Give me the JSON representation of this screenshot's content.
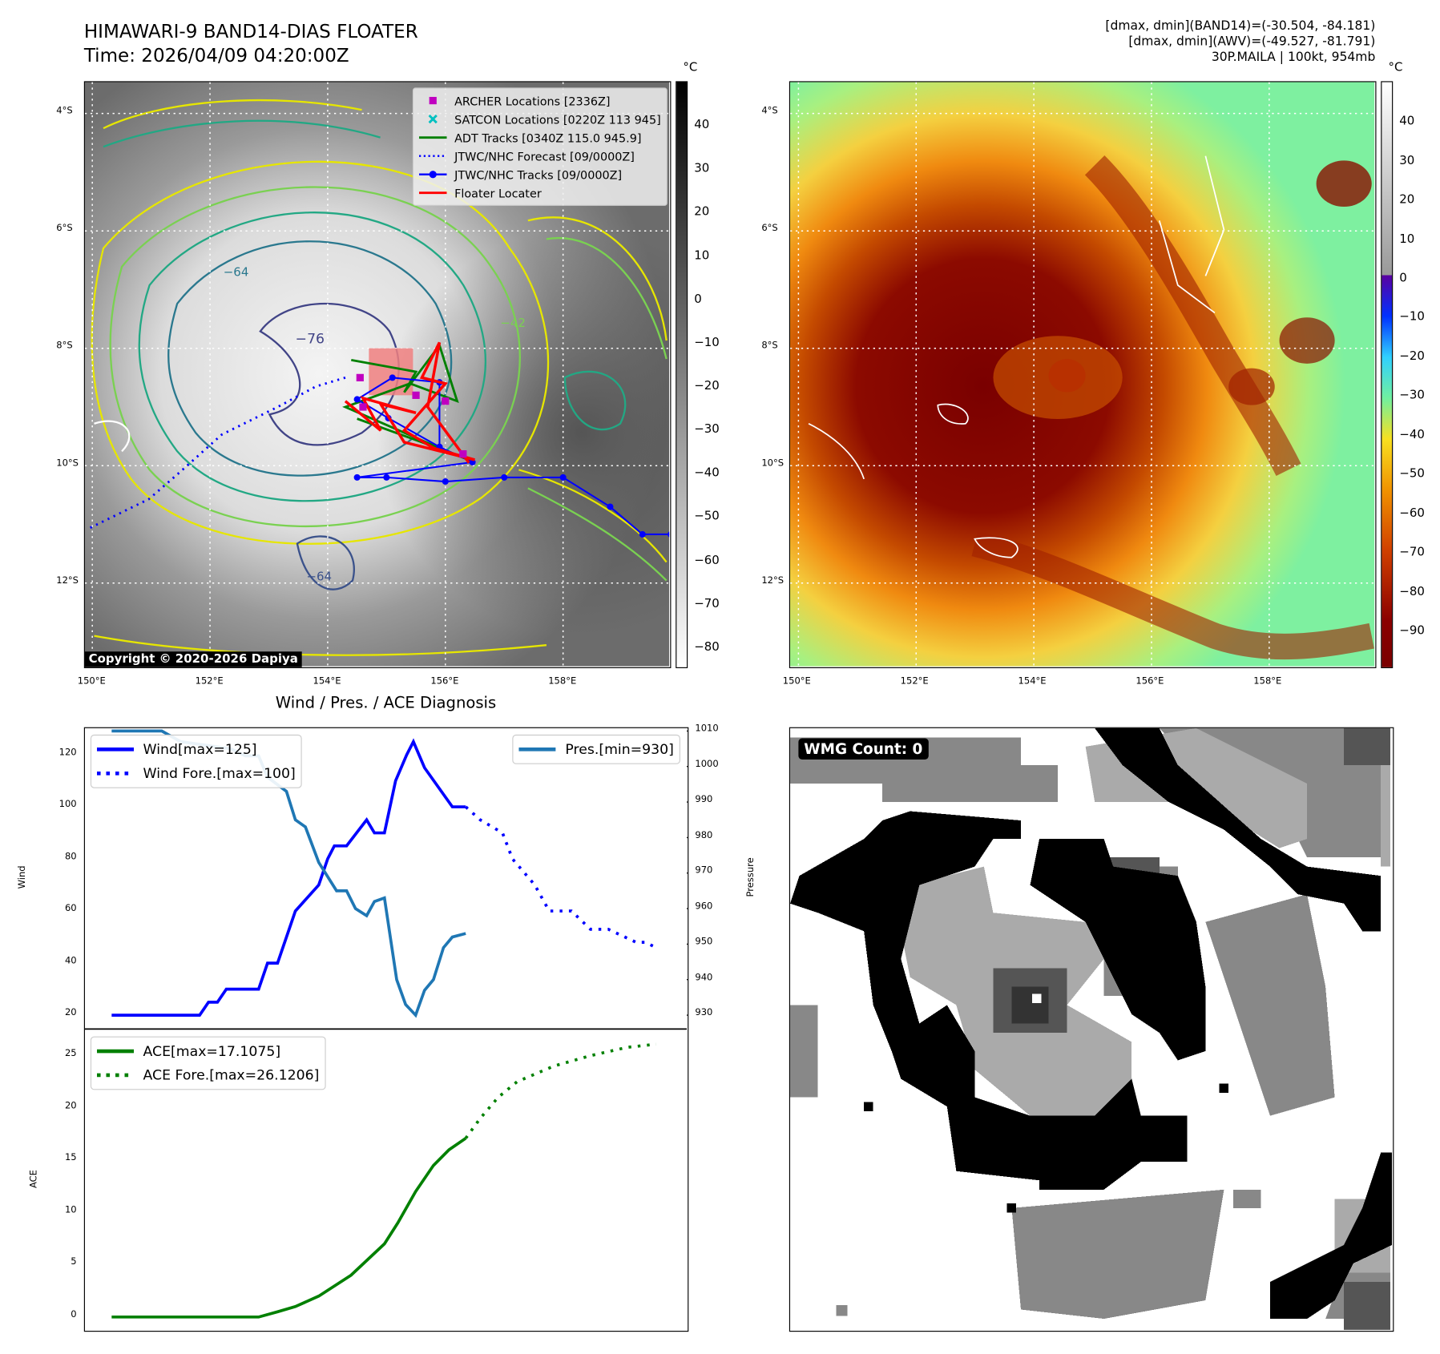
{
  "header": {
    "title": "HIMAWARI-9 BAND14-DIAS FLOATER",
    "time": "Time: 2026/04/09 04:20:00Z",
    "info_line1": "[dmax, dmin](BAND14)=(-30.504, -84.181)",
    "info_line2": "[dmax, dmin](AWV)=(-49.527, -81.791)",
    "info_line3": "30P.MAILA | 100kt, 954mb"
  },
  "maps": {
    "lat_labels": [
      "4°S",
      "6°S",
      "8°S",
      "10°S",
      "12°S"
    ],
    "lon_labels": [
      "150°E",
      "152°E",
      "154°E",
      "156°E",
      "158°E"
    ],
    "unit": "°C",
    "copyright": "Copyright © 2020-2026 Dapiya",
    "contour_labels": [
      "−76",
      "−42",
      "−64",
      "−64"
    ],
    "left_colorbar": {
      "ticks": [
        "40",
        "30",
        "20",
        "10",
        "0",
        "−10",
        "−20",
        "−30",
        "−40",
        "−50",
        "−60",
        "−70",
        "−80"
      ],
      "range": [
        -84.7,
        50.2
      ]
    },
    "right_colorbar": {
      "ticks": [
        "40",
        "30",
        "20",
        "10",
        "0",
        "−10",
        "−20",
        "−30",
        "−40",
        "−50",
        "−60",
        "−70",
        "−80",
        "−90"
      ],
      "range": [
        -99.4,
        50.4
      ]
    },
    "legend": [
      {
        "label": "ARCHER Locations [2336Z]",
        "color": "#c000c0",
        "icon": "square-marker-icon"
      },
      {
        "label": "SATCON Locations [0220Z 113 945]",
        "color": "#00c0c0",
        "icon": "x-marker-icon"
      },
      {
        "label": "ADT Tracks [0340Z 115.0 945.9]",
        "color": "#008000",
        "icon": "solid-line-icon"
      },
      {
        "label": "JTWC/NHC Forecast [09/0000Z]",
        "color": "#0000ff",
        "icon": "dotted-line-icon"
      },
      {
        "label": "JTWC/NHC Tracks [09/0000Z]",
        "color": "#0000ff",
        "icon": "line-dot-icon"
      },
      {
        "label": "Floater Locater",
        "color": "#ff0000",
        "icon": "solid-line-icon"
      }
    ],
    "tracks": {
      "jtwc": [
        [
          159.83,
          11.17
        ],
        [
          159.35,
          11.17
        ],
        [
          158.8,
          10.7
        ],
        [
          158.0,
          10.2
        ],
        [
          157.0,
          10.2
        ],
        [
          156.0,
          10.27
        ],
        [
          155.0,
          10.2
        ],
        [
          154.5,
          10.2
        ],
        [
          156.46,
          9.94
        ],
        [
          155.9,
          9.68
        ],
        [
          155.03,
          9.19
        ],
        [
          154.5,
          8.87
        ],
        [
          155.1,
          8.5
        ],
        [
          155.9,
          8.58
        ],
        [
          155.9,
          9.68
        ]
      ],
      "forecast": [
        [
          154.3,
          8.5
        ],
        [
          153.8,
          8.65
        ],
        [
          153.15,
          9.0
        ],
        [
          152.2,
          9.47
        ],
        [
          151.5,
          10.1
        ],
        [
          150.96,
          10.57
        ],
        [
          149.94,
          11.07
        ]
      ],
      "floater": [
        [
          154.3,
          8.9
        ],
        [
          154.9,
          9.4
        ],
        [
          154.6,
          8.85
        ],
        [
          155.5,
          9.1
        ],
        [
          154.9,
          8.95
        ],
        [
          155.3,
          9.6
        ],
        [
          156.5,
          9.9
        ],
        [
          155.8,
          9.7
        ],
        [
          155.3,
          9.4
        ],
        [
          156.0,
          8.6
        ],
        [
          155.6,
          8.5
        ],
        [
          155.9,
          7.9
        ],
        [
          155.7,
          9.0
        ],
        [
          156.4,
          9.95
        ]
      ],
      "adt": [
        [
          154.4,
          8.2
        ],
        [
          155.5,
          8.4
        ],
        [
          155.3,
          8.75
        ],
        [
          155.9,
          7.95
        ],
        [
          156.2,
          8.9
        ],
        [
          155.4,
          8.6
        ],
        [
          154.3,
          9.0
        ],
        [
          155.9,
          9.7
        ],
        [
          156.4,
          9.9
        ],
        [
          155.6,
          9.6
        ],
        [
          154.5,
          9.2
        ]
      ],
      "archer": [
        [
          154.55,
          8.5
        ],
        [
          155.5,
          8.8
        ],
        [
          154.6,
          9.0
        ],
        [
          156.3,
          9.8
        ],
        [
          156.0,
          8.9
        ]
      ],
      "floater_box": [
        154.7,
        8.0,
        155.45,
        8.8
      ]
    }
  },
  "wmg": {
    "label": "WMG Count: 0"
  },
  "diagnosis": {
    "title": "Wind / Pres. / ACE Diagnosis",
    "wind_axis_label": "Wind",
    "pressure_axis_label": "Pressure",
    "ace_axis_label": "ACE"
  },
  "chart_data": [
    {
      "type": "line",
      "title": "Wind / Pres. / ACE Diagnosis",
      "ylabel": "Wind",
      "y2label": "Pressure",
      "xlim": [
        -2.4,
        51.65
      ],
      "ylim": [
        14.7,
        130.2
      ],
      "y2lim": [
        926.1,
        1010.8
      ],
      "yticks": [
        "20",
        "40",
        "60",
        "80",
        "100",
        "120"
      ],
      "y2ticks": [
        "930",
        "940",
        "950",
        "960",
        "970",
        "980",
        "990",
        "1000",
        "1010"
      ],
      "legend_left": [
        "Wind[max=125]",
        "Wind Fore.[max=100]"
      ],
      "legend_right": [
        "Pres.[min=930]"
      ],
      "series": [
        {
          "name": "Wind[max=125]",
          "color": "#0000ff",
          "style": "solid",
          "axis": "left",
          "points": [
            [
              0,
              20
            ],
            [
              7.9,
              20
            ],
            [
              8.7,
              25
            ],
            [
              9.5,
              25
            ],
            [
              10.3,
              30
            ],
            [
              13.2,
              30
            ],
            [
              14,
              40
            ],
            [
              14.9,
              40
            ],
            [
              16.5,
              60
            ],
            [
              18.6,
              70
            ],
            [
              19.4,
              80
            ],
            [
              20,
              85
            ],
            [
              21.1,
              85
            ],
            [
              22.9,
              95
            ],
            [
              23.6,
              90
            ],
            [
              24.5,
              90
            ],
            [
              25.5,
              110
            ],
            [
              26.5,
              120
            ],
            [
              27.1,
              125
            ],
            [
              28.1,
              115
            ],
            [
              30.6,
              100
            ],
            [
              31.8,
              100
            ]
          ]
        },
        {
          "name": "Wind Fore.[max=100]",
          "color": "#0000ff",
          "style": "dotted",
          "axis": "left",
          "points": [
            [
              31.8,
              100
            ],
            [
              33.1,
              95
            ],
            [
              35.1,
              90
            ],
            [
              36,
              80
            ],
            [
              38,
              70
            ],
            [
              39.3,
              60
            ],
            [
              41.3,
              60
            ],
            [
              43,
              53
            ],
            [
              44.6,
              53
            ],
            [
              47.1,
              48
            ],
            [
              47.9,
              48
            ],
            [
              48.9,
              46
            ]
          ]
        },
        {
          "name": "Pres.[min=930]",
          "color": "#1f77b4",
          "style": "solid",
          "axis": "right",
          "points": [
            [
              0,
              1010
            ],
            [
              4.5,
              1010
            ],
            [
              6.2,
              1007
            ],
            [
              10.7,
              1005
            ],
            [
              12,
              1003
            ],
            [
              13.2,
              1003
            ],
            [
              14,
              997
            ],
            [
              15.7,
              993
            ],
            [
              16.5,
              985
            ],
            [
              17.4,
              983
            ],
            [
              18.6,
              973
            ],
            [
              20.2,
              965
            ],
            [
              21.1,
              965
            ],
            [
              21.9,
              960
            ],
            [
              22.9,
              958
            ],
            [
              23.6,
              962
            ],
            [
              24.5,
              963
            ],
            [
              25.6,
              940
            ],
            [
              26.4,
              933
            ],
            [
              27.3,
              930
            ],
            [
              28.1,
              937
            ],
            [
              28.9,
              940
            ],
            [
              29.8,
              949
            ],
            [
              30.6,
              952
            ],
            [
              31.8,
              953
            ]
          ]
        }
      ]
    },
    {
      "type": "line",
      "ylabel": "ACE",
      "xlim": [
        -2.4,
        51.65
      ],
      "ylim": [
        -1.23,
        27.55
      ],
      "yticks": [
        "0",
        "5",
        "10",
        "15",
        "20",
        "25"
      ],
      "legend": [
        "ACE[max=17.1075]",
        "ACE Fore.[max=26.1206]"
      ],
      "series": [
        {
          "name": "ACE[max=17.1075]",
          "color": "#008000",
          "style": "solid",
          "points": [
            [
              0,
              0
            ],
            [
              13.2,
              0
            ],
            [
              14.9,
              0.5
            ],
            [
              16.5,
              1
            ],
            [
              18.6,
              2
            ],
            [
              21.5,
              4
            ],
            [
              24.5,
              7
            ],
            [
              25.7,
              9
            ],
            [
              26.5,
              10.5
            ],
            [
              27.3,
              12
            ],
            [
              28.9,
              14.5
            ],
            [
              30.3,
              16
            ],
            [
              31.8,
              17.1
            ]
          ]
        },
        {
          "name": "ACE Fore.[max=26.1206]",
          "color": "#008000",
          "style": "dotted",
          "points": [
            [
              31.8,
              17.1
            ],
            [
              33.1,
              19
            ],
            [
              34.7,
              21
            ],
            [
              36.4,
              22.5
            ],
            [
              39.7,
              24
            ],
            [
              43,
              25
            ],
            [
              46.3,
              25.8
            ],
            [
              48.9,
              26.1
            ]
          ]
        }
      ]
    }
  ]
}
